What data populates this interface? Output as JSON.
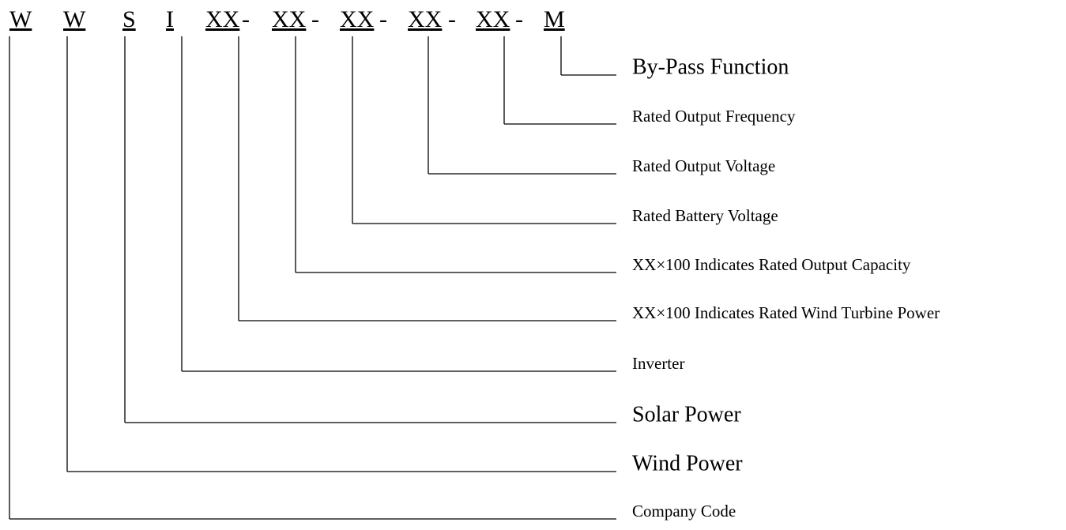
{
  "code": [
    "W",
    "W",
    "S",
    "I",
    "XX",
    "-",
    "XX",
    "-",
    "XX",
    "-",
    "XX",
    "-",
    "XX",
    "-",
    "M"
  ],
  "labels": [
    "By-Pass Function",
    "Rated Output Frequency",
    "Rated Output Voltage",
    "Rated Battery Voltage",
    "XX×100 Indicates Rated Output Capacity",
    "XX×100 Indicates Rated Wind Turbine Power",
    "Inverter",
    "Solar Power",
    "Wind Power",
    "Company Code"
  ]
}
